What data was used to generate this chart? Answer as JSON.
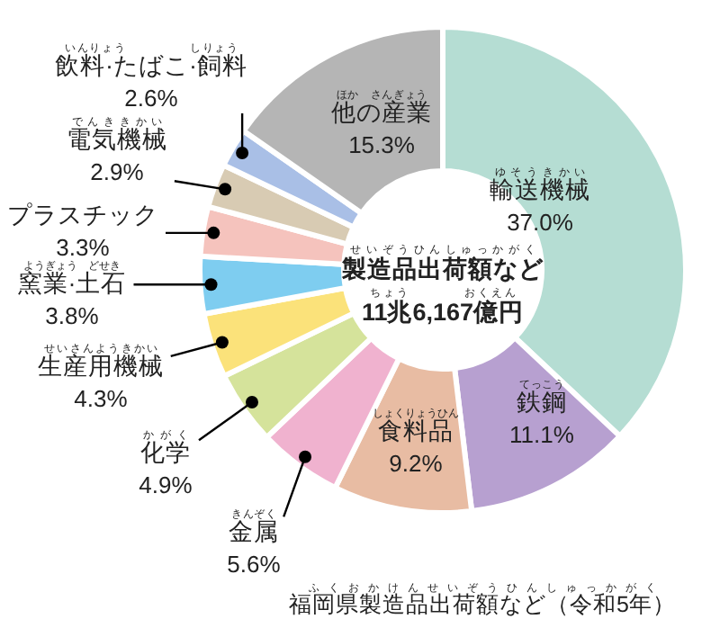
{
  "chart_data": {
    "type": "donut",
    "title": "福岡県製造品出荷額など（令和5年）",
    "subtitle": "製造品出荷額など\n11兆6,167億円",
    "categories": [
      "輸送機械",
      "鉄鋼",
      "食料品",
      "金属",
      "化学",
      "生産用機械",
      "窯業·土石",
      "プラスチック",
      "電気機械",
      "飲料·たばこ·飼料",
      "他の産業"
    ],
    "values": [
      37.0,
      11.1,
      9.2,
      5.6,
      4.9,
      4.3,
      3.8,
      3.3,
      2.9,
      2.6,
      15.3
    ],
    "value_labels": [
      "37.0%",
      "11.1%",
      "9.2%",
      "5.6%",
      "4.9%",
      "4.3%",
      "3.8%",
      "3.3%",
      "2.9%",
      "2.6%",
      "15.3%"
    ],
    "colors": [
      "#b5ddd3",
      "#b7a0d0",
      "#e8bca3",
      "#f0b2cf",
      "#d5e39b",
      "#fbe27a",
      "#7ecdf0",
      "#f5c3bd",
      "#d8cbb3",
      "#a9bfe6",
      "#b5b5b5"
    ],
    "annotations": [
      "ゆそうきかい",
      "てっこう",
      "しょくりょうひん",
      "きんぞく",
      "かがく",
      "せいさんようきかい",
      "ようぎょう　どせき",
      "でんききかい",
      "いんりょう　　　　　しりょう",
      "ほか　さんぎょう",
      "せいぞうひんしゅっかがく",
      "ちょう　　　　おくえん",
      "ふくおかけんせいぞうひんしゅっかがく"
    ]
  }
}
